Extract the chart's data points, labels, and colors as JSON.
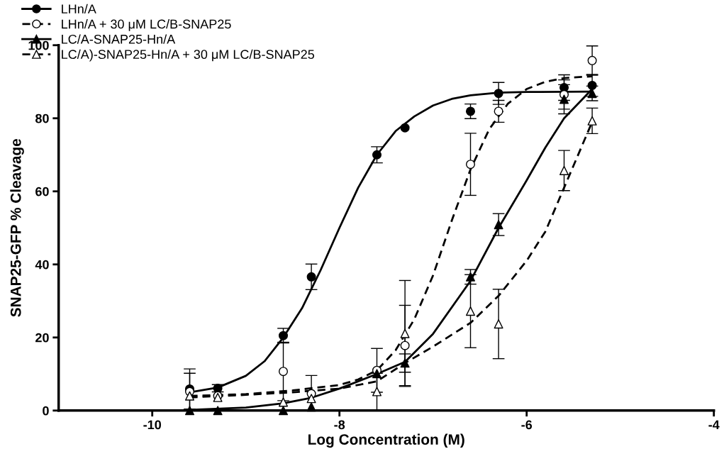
{
  "chart_data": {
    "type": "scatter",
    "xlabel": "Log Concentration (M)",
    "ylabel": "SNAP25-GFP % Cleavage",
    "x": [
      -9.6,
      -9.3,
      -8.6,
      -8.3,
      -7.6,
      -7.3,
      -6.6,
      -6.3,
      -5.6,
      -5.3
    ],
    "xlim": [
      -11,
      -4
    ],
    "xticks": [
      -10,
      -8,
      -6,
      -4
    ],
    "ylim": [
      0,
      100
    ],
    "yticks": [
      0,
      20,
      40,
      60,
      80,
      100
    ],
    "grid": false,
    "legend": "top left",
    "series": [
      {
        "name": "LHn/A",
        "color": "#000000",
        "marker": "circle",
        "line_style": "solid",
        "values": [
          5.9,
          6.1,
          20.5,
          36.6,
          70.0,
          77.4,
          81.9,
          86.8,
          88.4,
          89.0
        ],
        "errors": [
          5.5,
          1,
          2,
          3.5,
          2.2,
          null,
          2,
          3,
          3.5,
          3
        ]
      },
      {
        "name": "LHn/A + 30 μM LC/B-SNAP25",
        "color": "#000000",
        "marker": "circle",
        "line_style": "dashed",
        "values": [
          5.2,
          4,
          10.7,
          4.6,
          11.0,
          17.8,
          67.4,
          81.9,
          86.5,
          95.8
        ],
        "errors": [
          5,
          null,
          8,
          5,
          6,
          11,
          8.5,
          3,
          4,
          4
        ]
      },
      {
        "name": "LC/A-SNAP25-Hn/A",
        "color": "#000000",
        "marker": "triangle",
        "line_style": "solid",
        "values": [
          0,
          0,
          0,
          1,
          10.1,
          13.0,
          36.6,
          50.9,
          85.2,
          86.8
        ],
        "errors": [
          null,
          null,
          null,
          null,
          null,
          2.5,
          2,
          3,
          4,
          2
        ]
      },
      {
        "name": "LC/A)-SNAP25-Hn/A + 30 μM LC/B-SNAP25",
        "color": "#000000",
        "marker": "triangle",
        "line_style": "dashed",
        "values": [
          4,
          3.6,
          2.3,
          3.3,
          5.2,
          21.1,
          27.2,
          23.7,
          65.7,
          79.3
        ],
        "errors": [
          null,
          null,
          null,
          null,
          5,
          14.5,
          10,
          9.5,
          5.5,
          3.5
        ]
      },
      {
        "type": "line",
        "color": "#000000",
        "line_style": "solid",
        "x": [
          -9.6,
          -9.3,
          -9.0,
          -8.8,
          -8.6,
          -8.4,
          -8.2,
          -8.0,
          -7.8,
          -7.6,
          -7.4,
          -7.2,
          -7.0,
          -6.8,
          -6.6,
          -6.3,
          -6.0,
          -5.3
        ],
        "values": [
          5,
          6.3,
          9.5,
          13.5,
          20,
          28,
          38.5,
          50,
          61,
          70,
          76.5,
          80.5,
          83.5,
          85.3,
          86.3,
          87,
          87.2,
          87.3
        ]
      },
      {
        "type": "line",
        "color": "#000000",
        "line_style": "dashed",
        "x": [
          -9.6,
          -9.0,
          -8.5,
          -8.0,
          -7.8,
          -7.6,
          -7.4,
          -7.2,
          -7.0,
          -6.8,
          -6.6,
          -6.4,
          -6.2,
          -6.0,
          -5.8,
          -5.6,
          -5.3
        ],
        "values": [
          4,
          4.5,
          5.5,
          7,
          8.5,
          11,
          16.5,
          25,
          37,
          52,
          66,
          77,
          84,
          88,
          90,
          91,
          91.5
        ]
      },
      {
        "type": "line",
        "color": "#000000",
        "line_style": "solid",
        "x": [
          -9.6,
          -9.0,
          -8.6,
          -8.3,
          -8.0,
          -7.6,
          -7.3,
          -7.0,
          -6.6,
          -6.3,
          -6.0,
          -5.8,
          -5.6,
          -5.3
        ],
        "values": [
          0.2,
          0.8,
          2,
          3.5,
          6,
          10,
          13.3,
          21,
          35.5,
          50,
          63,
          72,
          80,
          88
        ]
      },
      {
        "type": "line",
        "color": "#000000",
        "line_style": "dashed",
        "x": [
          -9.6,
          -9.0,
          -8.5,
          -8.0,
          -7.6,
          -7.3,
          -7.0,
          -6.6,
          -6.3,
          -6.0,
          -5.8,
          -5.6,
          -5.4,
          -5.3
        ],
        "values": [
          3.6,
          4.3,
          5,
          6,
          8,
          13,
          17.5,
          24,
          31.4,
          41,
          49,
          61,
          73,
          79
        ]
      }
    ]
  }
}
